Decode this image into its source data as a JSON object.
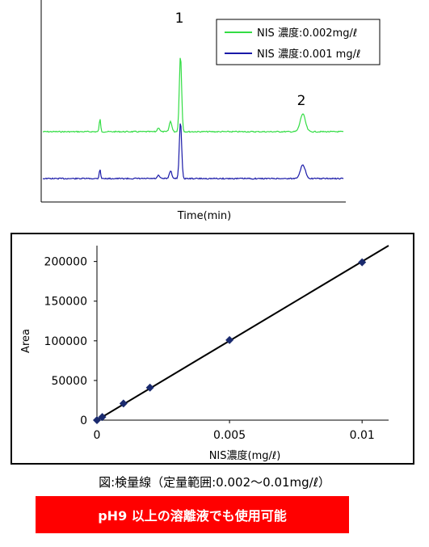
{
  "chart_data": [
    {
      "type": "line",
      "xlabel": "Time(min)",
      "ylabel": "",
      "grid": false,
      "legend_position": "top-right",
      "series": [
        {
          "name": "NIS 濃度:0.002mg/ℓ",
          "color": "#33dd44"
        },
        {
          "name": "NIS 濃度:0.001 mg/ℓ",
          "color": "#1a1aa8"
        }
      ],
      "peaks": [
        {
          "label": "1",
          "position": 0.46
        },
        {
          "label": "2",
          "position": 0.86
        }
      ]
    },
    {
      "type": "scatter",
      "xlabel": "NIS濃度(mg/ℓ)",
      "ylabel": "Area",
      "xlim": [
        0,
        0.011
      ],
      "ylim": [
        0,
        220000
      ],
      "xticks": [
        "0",
        "0.005",
        "0.01"
      ],
      "yticks": [
        "0",
        "50000",
        "100000",
        "150000",
        "200000"
      ],
      "points": [
        {
          "x": 0,
          "y": 0
        },
        {
          "x": 0.0002,
          "y": 4000
        },
        {
          "x": 0.001,
          "y": 21000
        },
        {
          "x": 0.002,
          "y": 41000
        },
        {
          "x": 0.005,
          "y": 101000
        },
        {
          "x": 0.01,
          "y": 199000
        }
      ],
      "fit_line": {
        "x": [
          0,
          0.011
        ],
        "y": [
          0,
          220000
        ]
      },
      "marker_color": "#1a2a6e"
    }
  ],
  "caption": "図:検量線（定量範囲:0.002～0.01mg/ℓ）",
  "banner": "pH9 以上の溶離液でも使用可能"
}
